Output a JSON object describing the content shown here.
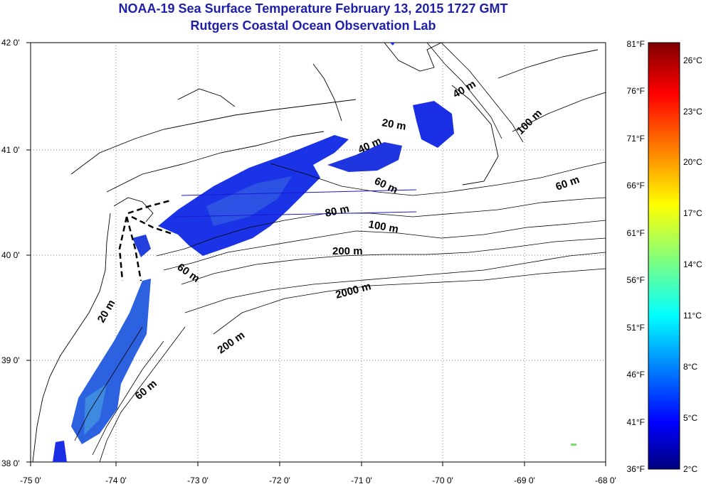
{
  "title": {
    "line1": "NOAA-19 Sea Surface Temperature February 13, 2015 1727 GMT",
    "line2": "Rutgers Coastal Ocean Observation Lab"
  },
  "colors": {
    "title": "#1f1fa8",
    "sst_dominant": "#1a2ee6"
  },
  "map": {
    "lat_labels": [
      "42 0'",
      "41 0'",
      "40 0'",
      "39 0'",
      "38 0'"
    ],
    "lon_labels": [
      "-75 0'",
      "-74 0'",
      "-73 0'",
      "-72 0'",
      "-71 0'",
      "-70 0'",
      "-69 0'",
      "-68 0'"
    ],
    "contour_labels": [
      "40 m",
      "20 m",
      "40 m",
      "100 m",
      "60 m",
      "60 m",
      "80 m",
      "100 m",
      "200 m",
      "60 m",
      "2000 m",
      "20 m",
      "200 m",
      "60 m"
    ]
  },
  "colorbar": {
    "fahrenheit": [
      "81°F",
      "76°F",
      "71°F",
      "66°F",
      "61°F",
      "56°F",
      "51°F",
      "46°F",
      "41°F",
      "36°F"
    ],
    "celsius": [
      "26°C",
      "23°C",
      "20°C",
      "17°C",
      "14°C",
      "11°C",
      "8°C",
      "5°C",
      "2°C"
    ]
  }
}
